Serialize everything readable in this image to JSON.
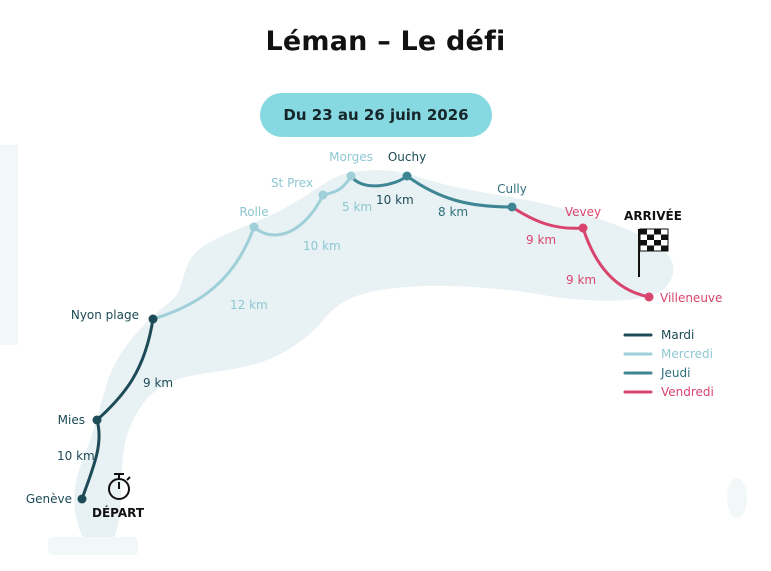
{
  "title": "Léman – Le défi",
  "dates": "Du 23 au 26 juin 2026",
  "colors": {
    "lake": "#e8f1f3",
    "mardi": "#1d4b57",
    "mercredi": "#9fcfd8",
    "jeudi": "#3f8694",
    "vendredi": "#d9446e",
    "pill": "#86d9e0"
  },
  "places": {
    "geneve": "Genève",
    "mies": "Mies",
    "nyon": "Nyon plage",
    "rolle": "Rolle",
    "stprex": "St Prex",
    "morges": "Morges",
    "ouchy": "Ouchy",
    "cully": "Cully",
    "vevey": "Vevey",
    "villeneuve": "Villeneuve"
  },
  "distances": {
    "geneve_mies": "10 km",
    "mies_nyon": "9 km",
    "nyon_rolle": "12 km",
    "rolle_stprex": "10 km",
    "stprex_morges": "5 km",
    "morges_ouchy": "10 km",
    "ouchy_cully": "8 km",
    "cully_vevey": "9 km",
    "vevey_villeneuve": "9 km"
  },
  "start_label": "DÉPART",
  "finish_label": "ARRIVÉE",
  "start_icon": "stopwatch-icon",
  "finish_icon": "checkered-flag-icon",
  "legend": [
    {
      "label": "Mardi"
    },
    {
      "label": "Mercredi"
    },
    {
      "label": "Jeudi"
    },
    {
      "label": "Vendredi"
    }
  ]
}
